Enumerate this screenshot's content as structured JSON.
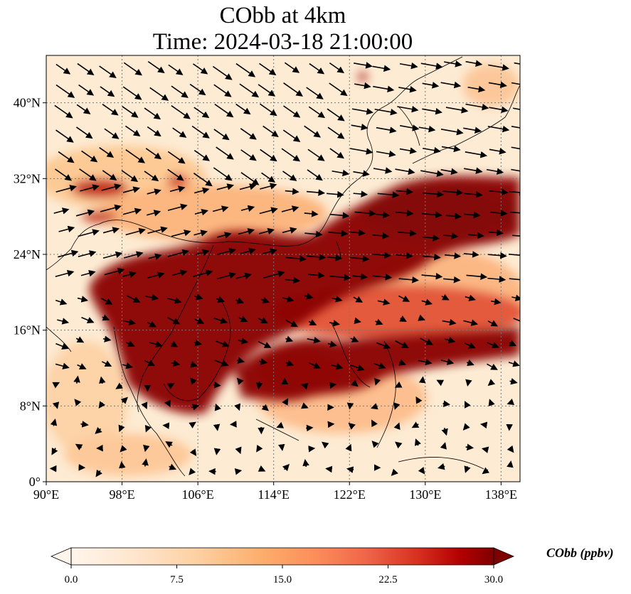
{
  "title": {
    "line1": "CObb at 4km",
    "line2": "Time: 2024-03-18 21:00:00"
  },
  "map": {
    "lon_range": [
      90,
      140
    ],
    "lat_range": [
      0,
      45
    ],
    "lon_ticks": [
      {
        "value": 90,
        "label": "90°E"
      },
      {
        "value": 98,
        "label": "98°E"
      },
      {
        "value": 106,
        "label": "106°E"
      },
      {
        "value": 114,
        "label": "114°E"
      },
      {
        "value": 122,
        "label": "122°E"
      },
      {
        "value": 130,
        "label": "130°E"
      },
      {
        "value": 138,
        "label": "138°E"
      }
    ],
    "lat_ticks": [
      {
        "value": 0,
        "label": "0°"
      },
      {
        "value": 8,
        "label": "8°N"
      },
      {
        "value": 16,
        "label": "16°N"
      },
      {
        "value": 24,
        "label": "24°N"
      },
      {
        "value": 32,
        "label": "32°N"
      },
      {
        "value": 40,
        "label": "40°N"
      }
    ],
    "gridlines": "dotted",
    "vectors": "wind arrows, black"
  },
  "colorbar": {
    "title": "CObb (ppbv)",
    "min": 0,
    "max": 30,
    "ticks": [
      "0.0",
      "7.5",
      "15.0",
      "22.5",
      "30.0"
    ],
    "colors": [
      "#fff5eb",
      "#fdd9a8",
      "#fdbb84",
      "#fc8d59",
      "#ef6548",
      "#d7301f",
      "#b30000",
      "#7f0000"
    ],
    "extend": "both"
  }
}
